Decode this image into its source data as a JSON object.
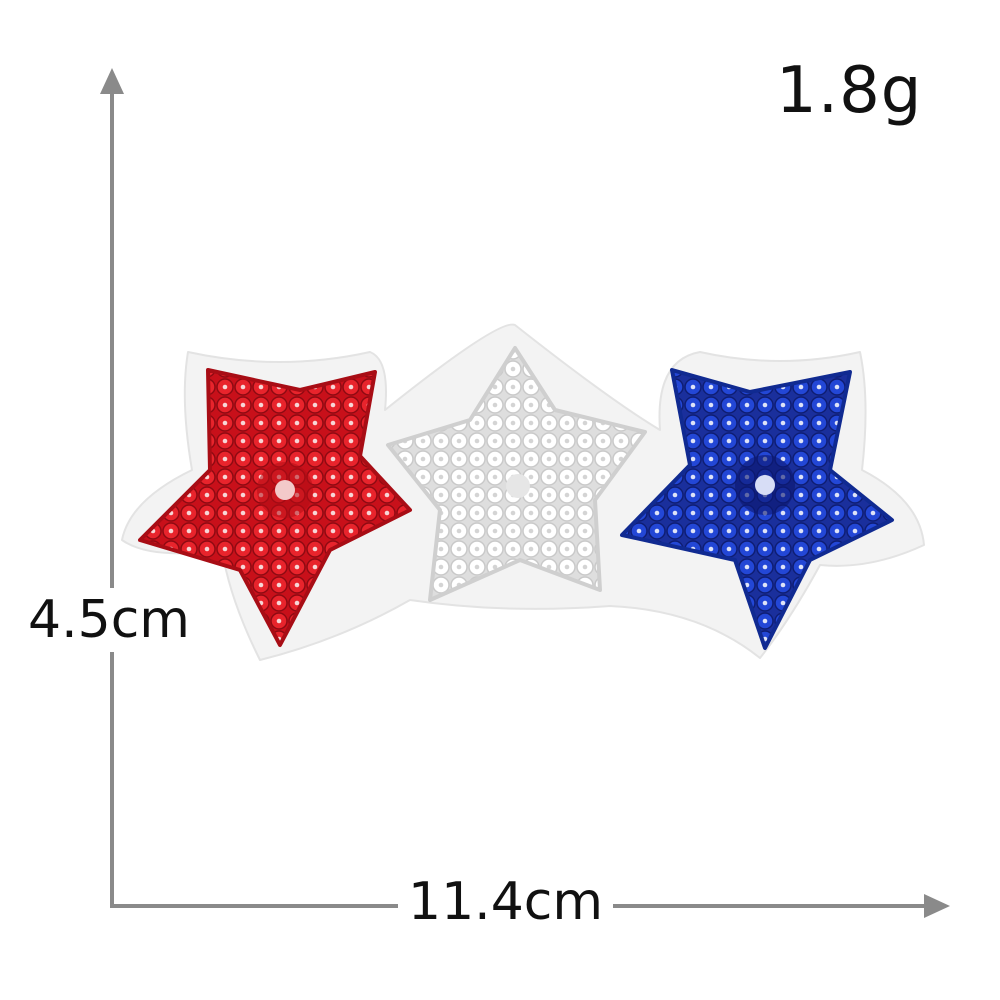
{
  "weight": "1.8g",
  "height": "4.5cm",
  "width": "11.4cm",
  "colors": {
    "axis": "#8a8a8a",
    "felt": "#f3f3f3",
    "red": "#d8141b",
    "white": "#ffffff",
    "blue": "#1b3cc2"
  }
}
